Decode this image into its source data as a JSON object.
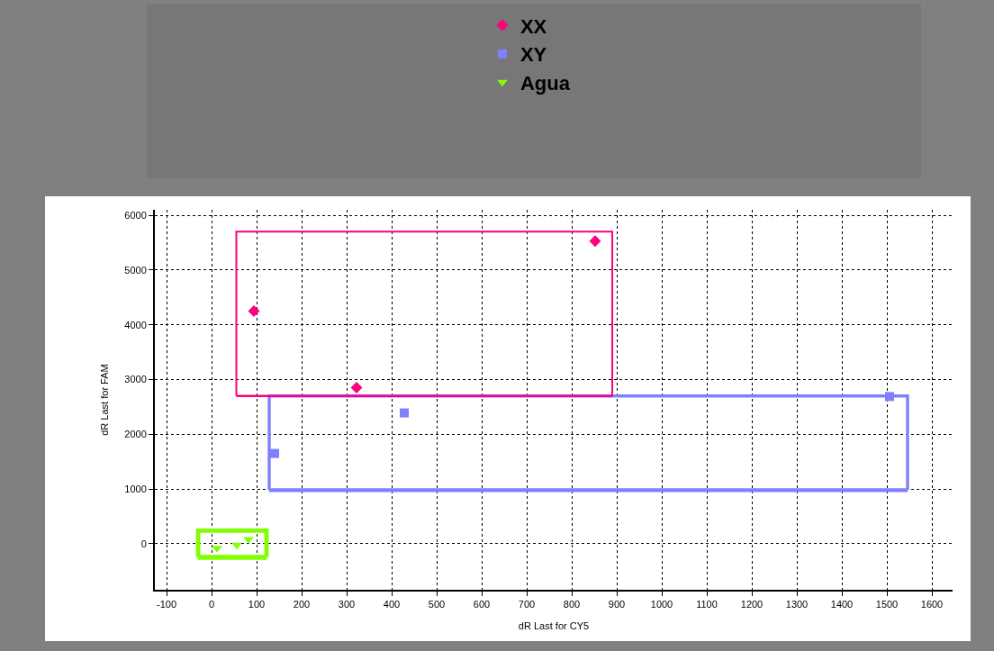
{
  "chart_data": {
    "type": "scatter",
    "xlabel": "dR Last for CY5",
    "ylabel": "dR Last for FAM",
    "xlim": [
      -126,
      1646
    ],
    "ylim": [
      -840,
      6100
    ],
    "xticks": [
      -100,
      0,
      100,
      200,
      300,
      400,
      500,
      600,
      700,
      800,
      900,
      1000,
      1100,
      1200,
      1300,
      1400,
      1500,
      1600
    ],
    "yticks": [
      0,
      1000,
      2000,
      3000,
      4000,
      5000,
      6000
    ],
    "grid": true,
    "legend": "top",
    "series": [
      {
        "name": "XX",
        "color": "#ff0080",
        "marker": "diamond",
        "x": [
          94,
          322,
          852
        ],
        "values": [
          4250,
          2850,
          5530
        ]
      },
      {
        "name": "XY",
        "color": "#8080ff",
        "marker": "square",
        "x": [
          140,
          428,
          1506
        ],
        "values": [
          1650,
          2390,
          2690
        ]
      },
      {
        "name": "Agua",
        "color": "#80ff00",
        "marker": "triangle",
        "x": [
          12,
          56,
          82
        ],
        "values": [
          -80,
          -20,
          80
        ]
      },
      {
        "type": "line",
        "color": "#ff0080",
        "line_style": "solid",
        "marker": "none",
        "x": [
          55,
          55,
          890,
          890
        ],
        "values": [
          2700,
          5700,
          5700,
          2700
        ]
      },
      {
        "type": "line",
        "color": "#ff0080",
        "line_style": "solid",
        "marker": "none",
        "x": [
          55,
          890
        ],
        "values": [
          2700,
          2700
        ]
      },
      {
        "type": "line",
        "color": "#8080ff",
        "line_style": "solid",
        "marker": "none",
        "x": [
          128,
          128,
          1546,
          1546
        ],
        "values": [
          980,
          2700,
          2700,
          980
        ]
      },
      {
        "type": "line",
        "color": "#8080ff",
        "line_style": "solid",
        "marker": "none",
        "x": [
          128,
          1546
        ],
        "values": [
          980,
          980
        ]
      },
      {
        "type": "line",
        "color": "#80ff00",
        "line_style": "solid",
        "marker": "none",
        "x": [
          -30,
          -30,
          122,
          122
        ],
        "values": [
          -250,
          240,
          240,
          -250
        ]
      },
      {
        "type": "line",
        "color": "#80ff00",
        "line_style": "solid",
        "marker": "none",
        "x": [
          -30,
          122
        ],
        "values": [
          -250,
          -250
        ]
      }
    ]
  }
}
